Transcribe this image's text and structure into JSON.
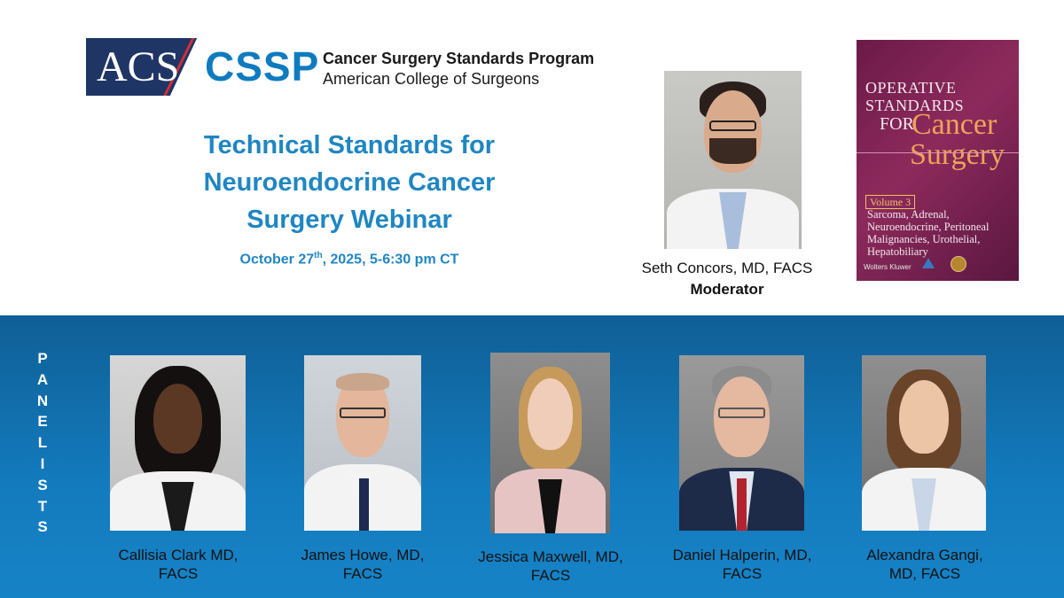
{
  "header": {
    "logo_acs": "ACS",
    "logo_cssp": "CSSP",
    "program_name": "Cancer Surgery Standards Program",
    "org_name": "American College of Surgeons"
  },
  "event": {
    "title_line1": "Technical Standards for",
    "title_line2": "Neuroendocrine Cancer",
    "title_line3": "Surgery Webinar",
    "date_prefix": "October 27",
    "date_sup": "th",
    "date_suffix": ", 2025, 5-6:30 pm CT"
  },
  "moderator": {
    "name": "Seth Concors, MD, FACS",
    "role": "Moderator"
  },
  "book": {
    "title_line1": "Operative",
    "title_line2": "Standards",
    "title_for": "FOR",
    "title_cancer": "Cancer",
    "title_surgery": "Surgery",
    "volume": "Volume 3",
    "topics": "Sarcoma, Adrenal, Neuroendocrine, Peritoneal Malignancies, Urothelial, Hepatobiliary",
    "publisher": "Wolters Kluwer"
  },
  "panelists_label": "P\nA\nN\nE\nL\nI\nS\nT\nS",
  "panelists": [
    {
      "name_line1": "Callisia Clark MD,",
      "name_line2": "FACS"
    },
    {
      "name_line1": "James Howe, MD,",
      "name_line2": "FACS"
    },
    {
      "name_line1": "Jessica Maxwell, MD,",
      "name_line2": "FACS"
    },
    {
      "name_line1": "Daniel Halperin, MD,",
      "name_line2": "FACS"
    },
    {
      "name_line1": "Alexandra Gangi,",
      "name_line2": "MD, FACS"
    }
  ],
  "colors": {
    "brand_navy": "#1f3565",
    "brand_blue": "#0f7bbf",
    "title_blue": "#1f86c2",
    "panel_bg": "#137bbd",
    "book_bg": "#7a2152"
  }
}
